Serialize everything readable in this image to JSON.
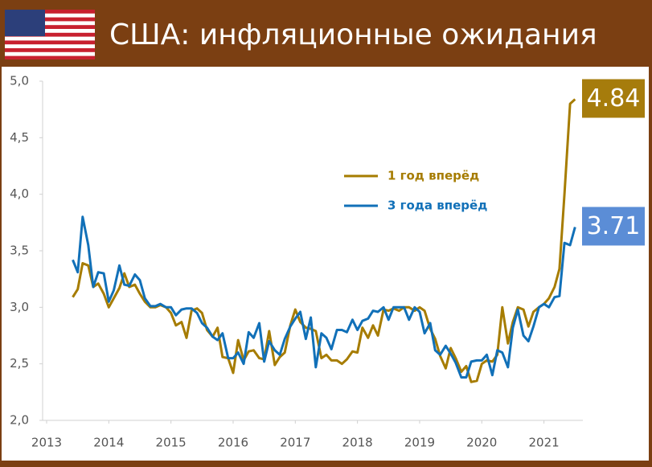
{
  "chart_data": {
    "type": "line",
    "title": "США: инфляционные ожидания",
    "x": [
      2013.42,
      2013.5,
      2013.58,
      2013.67,
      2013.75,
      2013.83,
      2013.92,
      2014,
      2014.08,
      2014.17,
      2014.25,
      2014.33,
      2014.42,
      2014.5,
      2014.58,
      2014.67,
      2014.75,
      2014.83,
      2014.92,
      2015,
      2015.08,
      2015.17,
      2015.25,
      2015.33,
      2015.42,
      2015.5,
      2015.58,
      2015.67,
      2015.75,
      2015.83,
      2015.92,
      2016,
      2016.08,
      2016.17,
      2016.25,
      2016.33,
      2016.42,
      2016.5,
      2016.58,
      2016.67,
      2016.75,
      2016.83,
      2016.92,
      2017,
      2017.08,
      2017.17,
      2017.25,
      2017.33,
      2017.42,
      2017.5,
      2017.58,
      2017.67,
      2017.75,
      2017.83,
      2017.92,
      2018,
      2018.08,
      2018.17,
      2018.25,
      2018.33,
      2018.42,
      2018.5,
      2018.58,
      2018.67,
      2018.75,
      2018.83,
      2018.92,
      2019,
      2019.08,
      2019.17,
      2019.25,
      2019.33,
      2019.42,
      2019.5,
      2019.58,
      2019.67,
      2019.75,
      2019.83,
      2019.92,
      2020,
      2020.08,
      2020.17,
      2020.25,
      2020.33,
      2020.42,
      2020.5,
      2020.58,
      2020.67,
      2020.75,
      2020.83,
      2020.92,
      2021,
      2021.08,
      2021.17,
      2021.25,
      2021.33,
      2021.42,
      2021.5
    ],
    "series": [
      {
        "name": "1 год вперёд",
        "color": "#a67c00",
        "label_color": "#a67c0c",
        "values": [
          3.09,
          3.16,
          3.39,
          3.37,
          3.18,
          3.21,
          3.12,
          3.0,
          3.08,
          3.17,
          3.3,
          3.18,
          3.2,
          3.12,
          3.05,
          3.0,
          3.0,
          3.02,
          3.0,
          2.95,
          2.84,
          2.87,
          2.73,
          2.97,
          2.99,
          2.95,
          2.8,
          2.74,
          2.82,
          2.56,
          2.55,
          2.42,
          2.71,
          2.53,
          2.61,
          2.62,
          2.55,
          2.54,
          2.79,
          2.49,
          2.56,
          2.6,
          2.84,
          2.98,
          2.87,
          2.82,
          2.81,
          2.79,
          2.55,
          2.58,
          2.53,
          2.53,
          2.5,
          2.54,
          2.61,
          2.6,
          2.82,
          2.73,
          2.84,
          2.75,
          2.98,
          2.97,
          2.99,
          2.97,
          3.0,
          3.0,
          2.97,
          3.0,
          2.97,
          2.81,
          2.72,
          2.57,
          2.46,
          2.64,
          2.55,
          2.43,
          2.48,
          2.34,
          2.35,
          2.5,
          2.53,
          2.52,
          2.58,
          3.0,
          2.68,
          2.87,
          3.0,
          2.98,
          2.83,
          2.96,
          3.0,
          3.03,
          3.08,
          3.18,
          3.34,
          4.0,
          4.8,
          4.84
        ]
      },
      {
        "name": "3 года вперёд",
        "color": "#1170b8",
        "label_color": "#5b8dd6",
        "values": [
          3.42,
          3.31,
          3.8,
          3.55,
          3.18,
          3.31,
          3.3,
          3.05,
          3.15,
          3.37,
          3.2,
          3.19,
          3.29,
          3.24,
          3.08,
          3.01,
          3.01,
          3.03,
          3.0,
          3.0,
          2.93,
          2.98,
          2.99,
          2.99,
          2.95,
          2.86,
          2.82,
          2.74,
          2.71,
          2.77,
          2.55,
          2.55,
          2.6,
          2.5,
          2.78,
          2.73,
          2.86,
          2.52,
          2.7,
          2.62,
          2.58,
          2.72,
          2.83,
          2.9,
          2.96,
          2.72,
          2.91,
          2.47,
          2.77,
          2.73,
          2.63,
          2.8,
          2.8,
          2.78,
          2.89,
          2.8,
          2.88,
          2.9,
          2.97,
          2.96,
          3.0,
          2.89,
          3.0,
          3.0,
          3.0,
          2.89,
          3.0,
          2.96,
          2.77,
          2.86,
          2.62,
          2.58,
          2.66,
          2.59,
          2.51,
          2.38,
          2.38,
          2.52,
          2.53,
          2.53,
          2.58,
          2.4,
          2.62,
          2.6,
          2.47,
          2.82,
          2.98,
          2.75,
          2.7,
          2.83,
          3.0,
          3.03,
          3.0,
          3.09,
          3.1,
          3.57,
          3.55,
          3.71
        ]
      }
    ],
    "xlim": [
      2013,
      2021.6
    ],
    "xticks": [
      2013,
      2014,
      2015,
      2016,
      2017,
      2018,
      2019,
      2020,
      2021
    ],
    "ylim": [
      2,
      5
    ],
    "yticks": [
      {
        "value": 2,
        "label": "2,0"
      },
      {
        "value": 2.5,
        "label": "2,5"
      },
      {
        "value": 3,
        "label": "3,0"
      },
      {
        "value": 3.5,
        "label": "3,5"
      },
      {
        "value": 4,
        "label": "4,0"
      },
      {
        "value": 4.5,
        "label": "4,5"
      },
      {
        "value": 5,
        "label": "5,0"
      }
    ],
    "grid": false,
    "legend": "center",
    "end_labels": true
  }
}
